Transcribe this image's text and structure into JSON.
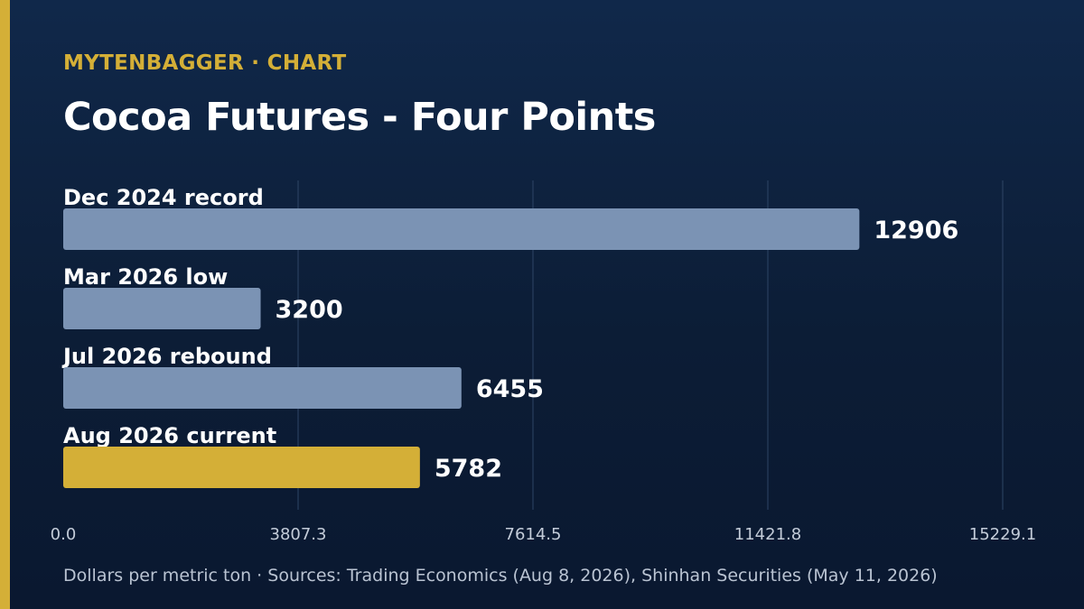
{
  "header": {
    "kicker": "MYTENBAGGER · CHART",
    "title": "Cocoa Futures - Four Points"
  },
  "footer": {
    "note": "Dollars per metric ton · Sources: Trading Economics (Aug 8, 2026), Shinhan Securities (May 11, 2026)"
  },
  "colors": {
    "background": "#0c1d36",
    "accent": "#d4af37",
    "bar": "#7b93b4",
    "highlight": "#d4af37",
    "grid": "#2e4566",
    "tick_text": "#c3ccd9"
  },
  "chart_data": {
    "type": "bar",
    "orientation": "horizontal",
    "categories": [
      "Dec 2024 record",
      "Mar 2026 low",
      "Jul 2026 rebound",
      "Aug 2026 current"
    ],
    "values": [
      12906,
      3200,
      6455,
      5782
    ],
    "highlight_index": 3,
    "xlim": [
      0,
      15229.1
    ],
    "xticks": [
      "0.0",
      "3807.3",
      "7614.5",
      "11421.8",
      "15229.1"
    ],
    "grid": true,
    "title": "Cocoa Futures - Four Points"
  }
}
